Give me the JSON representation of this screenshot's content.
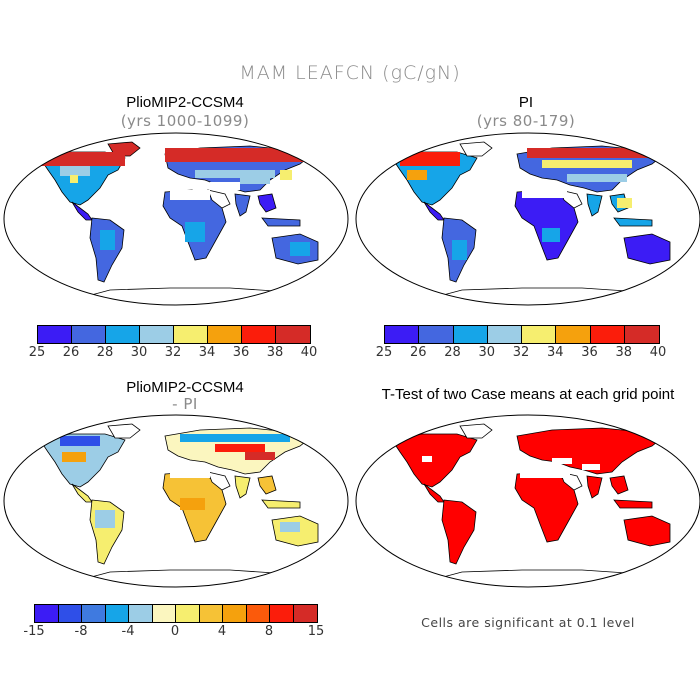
{
  "figure": {
    "title": "MAM LEAFCN (gC/gN)"
  },
  "panels": [
    {
      "title": "PlioMIP2-CCSM4",
      "subtitle": "(yrs 1000-1099)",
      "colorbar": {
        "colors": [
          "#3c1cf5",
          "#4467e0",
          "#16a5e8",
          "#9ccde6",
          "#f6ee6f",
          "#f5a10d",
          "#fb1d0b",
          "#d52b27"
        ],
        "ticks": [
          "25",
          "26",
          "28",
          "30",
          "32",
          "34",
          "36",
          "38",
          "40"
        ]
      }
    },
    {
      "title": "PI",
      "subtitle": "(yrs 80-179)",
      "colorbar": {
        "colors": [
          "#3c1cf5",
          "#4467e0",
          "#16a5e8",
          "#9ccde6",
          "#f6ee6f",
          "#f5a10d",
          "#fb1d0b",
          "#d52b27"
        ],
        "ticks": [
          "25",
          "26",
          "28",
          "30",
          "32",
          "34",
          "36",
          "38",
          "40"
        ]
      }
    },
    {
      "title": "PlioMIP2-CCSM4",
      "subtitle": "- PI",
      "colorbar": {
        "colors": [
          "#3c1cf5",
          "#2f4fe8",
          "#3f7ae0",
          "#16a5e8",
          "#9ccde6",
          "#fbf6bf",
          "#f6ee6f",
          "#f6c236",
          "#f5a10d",
          "#fb5a0b",
          "#fb1d0b",
          "#d52b27"
        ],
        "ticks": [
          "-15",
          "-8",
          "-4",
          "0",
          "4",
          "8",
          "15"
        ]
      }
    },
    {
      "title": "T-Test of two Case means at each grid point",
      "note": "Cells are significant at 0.1 level"
    }
  ]
}
